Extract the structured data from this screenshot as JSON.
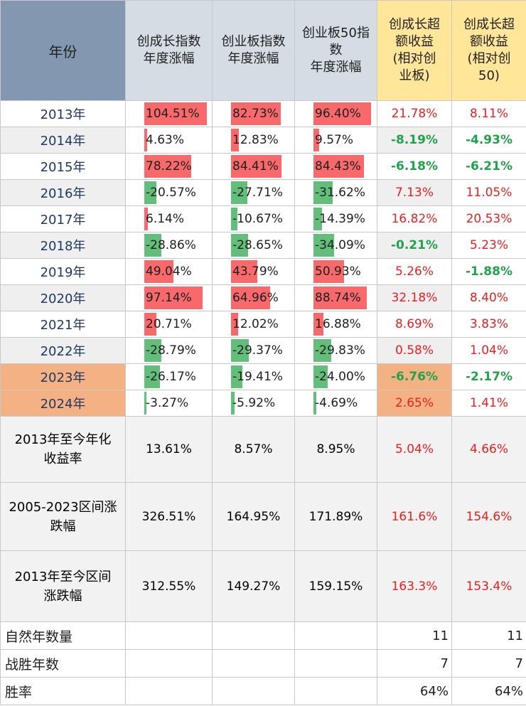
{
  "headers": {
    "year": "年份",
    "col1": "创成长指数年度涨幅",
    "col2": "创业板指数年度涨幅",
    "col3": "创业板50指数年度涨幅",
    "col4": "创成长超额收益(相对创业板)",
    "col5": "创成长超额收益(相对创50)"
  },
  "header_lines": {
    "col1": [
      "创成长指数",
      "年度涨幅"
    ],
    "col2": [
      "创业板指数",
      "年度涨幅"
    ],
    "col3": [
      "创业板50指",
      "数",
      "年度涨幅"
    ],
    "col4": [
      "创成长超",
      "额收益",
      "(相对创",
      "业板)"
    ],
    "col5": [
      "创成长超",
      "额收益",
      "(相对创",
      "50)"
    ]
  },
  "rows": [
    {
      "year": "2013年",
      "c1": "104.51%",
      "c2": "82.73%",
      "c3": "96.40%",
      "e1": "21.78%",
      "e2": "8.11%",
      "v1": 104.51,
      "v2": 82.73,
      "v3": 96.4
    },
    {
      "year": "2014年",
      "c1": "4.63%",
      "c2": "12.83%",
      "c3": "9.57%",
      "e1": "-8.19%",
      "e2": "-4.93%",
      "v1": 4.63,
      "v2": 12.83,
      "v3": 9.57
    },
    {
      "year": "2015年",
      "c1": "78.22%",
      "c2": "84.41%",
      "c3": "84.43%",
      "e1": "-6.18%",
      "e2": "-6.21%",
      "v1": 78.22,
      "v2": 84.41,
      "v3": 84.43
    },
    {
      "year": "2016年",
      "c1": "-20.57%",
      "c2": "-27.71%",
      "c3": "-31.62%",
      "e1": "7.13%",
      "e2": "11.05%",
      "v1": -20.57,
      "v2": -27.71,
      "v3": -31.62
    },
    {
      "year": "2017年",
      "c1": "6.14%",
      "c2": "-10.67%",
      "c3": "-14.39%",
      "e1": "16.82%",
      "e2": "20.53%",
      "v1": 6.14,
      "v2": -10.67,
      "v3": -14.39
    },
    {
      "year": "2018年",
      "c1": "-28.86%",
      "c2": "-28.65%",
      "c3": "-34.09%",
      "e1": "-0.21%",
      "e2": "5.23%",
      "v1": -28.86,
      "v2": -28.65,
      "v3": -34.09
    },
    {
      "year": "2019年",
      "c1": "49.04%",
      "c2": "43.79%",
      "c3": "50.93%",
      "e1": "5.26%",
      "e2": "-1.88%",
      "v1": 49.04,
      "v2": 43.79,
      "v3": 50.93
    },
    {
      "year": "2020年",
      "c1": "97.14%",
      "c2": "64.96%",
      "c3": "88.74%",
      "e1": "32.18%",
      "e2": "8.40%",
      "v1": 97.14,
      "v2": 64.96,
      "v3": 88.74
    },
    {
      "year": "2021年",
      "c1": "20.71%",
      "c2": "12.02%",
      "c3": "16.88%",
      "e1": "8.69%",
      "e2": "3.83%",
      "v1": 20.71,
      "v2": 12.02,
      "v3": 16.88
    },
    {
      "year": "2022年",
      "c1": "-28.79%",
      "c2": "-29.37%",
      "c3": "-29.83%",
      "e1": "0.58%",
      "e2": "1.04%",
      "v1": -28.79,
      "v2": -29.37,
      "v3": -29.83
    },
    {
      "year": "2023年",
      "c1": "-26.17%",
      "c2": "-19.41%",
      "c3": "-24.00%",
      "e1": "-6.76%",
      "e2": "-2.17%",
      "v1": -26.17,
      "v2": -19.41,
      "v3": -24.0
    },
    {
      "year": "2024年",
      "c1": "-3.27%",
      "c2": "-5.92%",
      "c3": "-4.69%",
      "e1": "2.65%",
      "e2": "1.41%",
      "v1": -3.27,
      "v2": -5.92,
      "v3": -4.69
    }
  ],
  "summary": [
    {
      "label": "2013年至今年化收益率",
      "label_lines": [
        "2013年至今年化",
        "收益率"
      ],
      "c1": "13.61%",
      "c2": "8.57%",
      "c3": "8.95%",
      "e1": "5.04%",
      "e2": "4.66%"
    },
    {
      "label": "2005-2023区间涨跌幅",
      "label_lines": [
        "2005-2023区间涨",
        "跌幅"
      ],
      "c1": "326.51%",
      "c2": "164.95%",
      "c3": "171.89%",
      "e1": "161.6%",
      "e2": "154.6%"
    },
    {
      "label": "2013年至今区间涨跌幅",
      "label_lines": [
        "2013年至今区间",
        "涨跌幅"
      ],
      "c1": "312.55%",
      "c2": "149.27%",
      "c3": "159.15%",
      "e1": "163.3%",
      "e2": "153.4%"
    }
  ],
  "footer": [
    {
      "label": "自然年数量",
      "e1": "11",
      "e2": "11"
    },
    {
      "label": "战胜年数",
      "e1": "7",
      "e2": "7"
    },
    {
      "label": "胜率",
      "e1": "64%",
      "e2": "64%"
    }
  ],
  "colors": {
    "header_year": "#8497b0",
    "header_blue": "#d6dce4",
    "header_gold": "#ffe699",
    "highlight": "#f4b183",
    "bar_pos": "#f8696b",
    "bar_neg": "#63be7b",
    "text_red": "#e82020",
    "text_green": "#21a34a"
  }
}
